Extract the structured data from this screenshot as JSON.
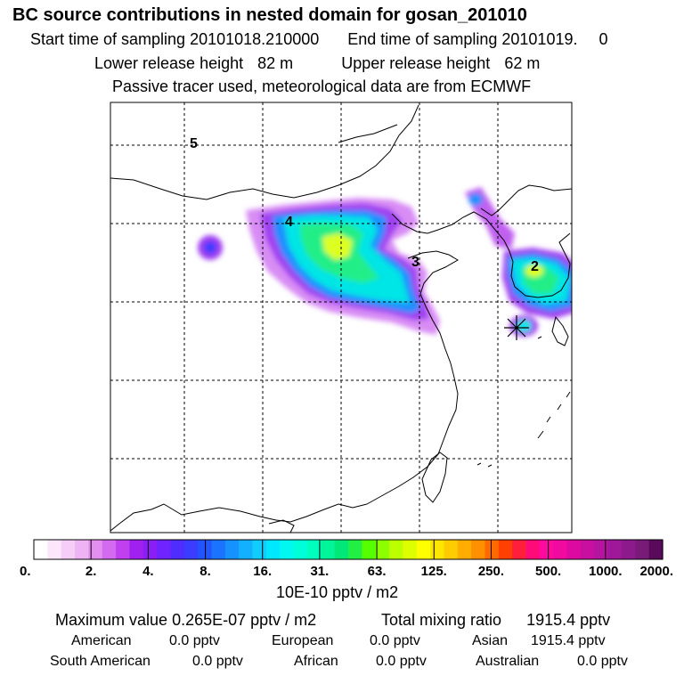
{
  "header": {
    "title": "BC  source contributions in nested domain for gosan_201010",
    "start_label": "Start time of sampling",
    "start_value": "20101018.210000",
    "end_label": "End time of sampling",
    "end_value": "20101019.",
    "end_extra": "0",
    "lower_label": "Lower release height",
    "lower_value": "82 m",
    "upper_label": "Upper release height",
    "upper_value": "62 m",
    "note": "Passive tracer used, meteorological data are from ECMWF"
  },
  "map": {
    "trajectory_labels": [
      "5",
      "4",
      "3",
      "2"
    ],
    "receptor_icon": "asterisk-receptor-marker"
  },
  "colorbar": {
    "tick_labels": [
      "0.",
      "2.",
      "4.",
      "8.",
      "16.",
      "31.",
      "63.",
      "125.",
      "250.",
      "500.",
      "1000.",
      "2000."
    ],
    "colors": [
      "#ffffff",
      "#fbe6fb",
      "#f5cdf7",
      "#eeb3f3",
      "#e38ff0",
      "#d46af0",
      "#c040f0",
      "#a020f0",
      "#8a1ef5",
      "#6f24ff",
      "#4f2dff",
      "#3a3cff",
      "#2255ff",
      "#1a74ff",
      "#1692ff",
      "#13b0ff",
      "#11ccff",
      "#00e8ff",
      "#00f8f0",
      "#00ffd8",
      "#00ffbe",
      "#00f59a",
      "#00e878",
      "#22ee44",
      "#55ff00",
      "#8cff00",
      "#bbff00",
      "#ddff00",
      "#ffff00",
      "#ffe600",
      "#ffcc00",
      "#ffae00",
      "#ff9000",
      "#ff6a00",
      "#ff4000",
      "#ff1e3c",
      "#ff0a78",
      "#ff0aa0",
      "#f00aa0",
      "#dc0aa0",
      "#c810a0",
      "#b414a0",
      "#a0189a",
      "#8c1a8c",
      "#781a78",
      "#5a0a5a"
    ],
    "units": "10E-10 pptv / m2"
  },
  "stats": {
    "max_label": "Maximum value",
    "max_value": "0.265E-07 pptv / m2",
    "total_label": "Total mixing ratio",
    "total_value": "1915.4 pptv",
    "regions": [
      {
        "name": "American",
        "value": "0.0 pptv"
      },
      {
        "name": "European",
        "value": "0.0 pptv"
      },
      {
        "name": "Asian",
        "value": "1915.4 pptv"
      },
      {
        "name": "South American",
        "value": "0.0 pptv"
      },
      {
        "name": "African",
        "value": "0.0 pptv"
      },
      {
        "name": "Australian",
        "value": "0.0 pptv"
      }
    ]
  }
}
